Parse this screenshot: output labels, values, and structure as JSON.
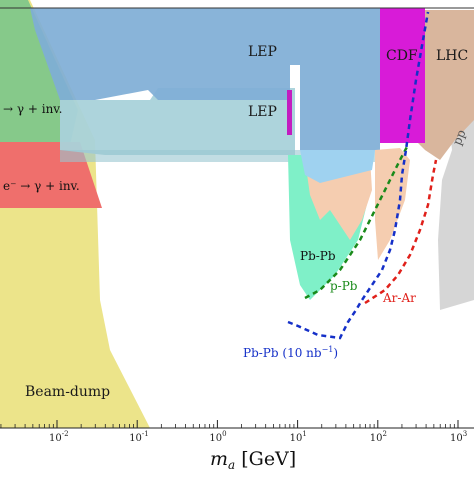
{
  "chart_data": {
    "type": "area",
    "xlabel": "m_a  [GeV]",
    "xscale": "log",
    "xlim": [
      0.001,
      2000
    ],
    "ylim_note": "y axis values not shown",
    "xticks": [
      {
        "value": 0.01,
        "label": "10",
        "exp": "-2"
      },
      {
        "value": 0.1,
        "label": "10",
        "exp": "-1"
      },
      {
        "value": 1,
        "label": "10",
        "exp": "0"
      },
      {
        "value": 10,
        "label": "10",
        "exp": "1"
      },
      {
        "value": 100,
        "label": "10",
        "exp": "2"
      },
      {
        "value": 1000,
        "label": "10",
        "exp": "3"
      }
    ],
    "regions": [
      {
        "name": "LEP",
        "label": "LEP",
        "color": "#7faed6",
        "opacity": 0.9
      },
      {
        "name": "LEP-lower",
        "label": "LEP",
        "color": "#a9d2da",
        "opacity": 0.95
      },
      {
        "name": "CDF",
        "label": "CDF",
        "color": "#d81bd8"
      },
      {
        "name": "LHC",
        "label": "LHC",
        "color": "#d9b69d"
      },
      {
        "name": "Beam-dump",
        "label": "Beam-dump",
        "color": "#ece48a"
      },
      {
        "name": "ee-gamma-inv-upper",
        "label": "→ γ + inv.",
        "color": "#86c98a"
      },
      {
        "name": "ee-gamma-inv-lower",
        "label": "e⁻ → γ + inv.",
        "color": "#ef6f6c"
      },
      {
        "name": "Pb-Pb",
        "label": "Pb-Pb",
        "color": "#7ff0c8"
      },
      {
        "name": "pp",
        "label": "pp",
        "color": "#d6d6d6"
      }
    ],
    "projections": [
      {
        "name": "p-Pb",
        "label": "p-Pb",
        "color": "#1a8a1a",
        "x": [
          6,
          8,
          12,
          20,
          40,
          70,
          100,
          140,
          200,
          300
        ],
        "level": [
          0.86,
          0.85,
          0.82,
          0.78,
          0.72,
          0.64,
          0.55,
          0.44,
          0.32,
          0.2
        ]
      },
      {
        "name": "Ar-Ar",
        "label": "Ar-Ar",
        "color": "#e0201a",
        "x": [
          70,
          100,
          140,
          200,
          300,
          400,
          500
        ],
        "level": [
          0.84,
          0.79,
          0.74,
          0.67,
          0.56,
          0.44,
          0.32
        ]
      },
      {
        "name": "Pb-Pb (10 nb-1)",
        "label": "Pb-Pb (10 nb",
        "label_sup": "−1",
        "label_end": ")",
        "color": "#1530c8",
        "x": [
          3,
          5,
          8,
          12,
          20,
          35,
          60,
          90,
          110,
          130,
          150,
          200,
          260,
          320,
          400,
          450
        ],
        "level": [
          0.9,
          0.9,
          0.93,
          0.95,
          0.95,
          0.95,
          0.93,
          0.9,
          0.82,
          0.7,
          0.58,
          0.42,
          0.3,
          0.18,
          0.05,
          0.0
        ]
      }
    ]
  }
}
